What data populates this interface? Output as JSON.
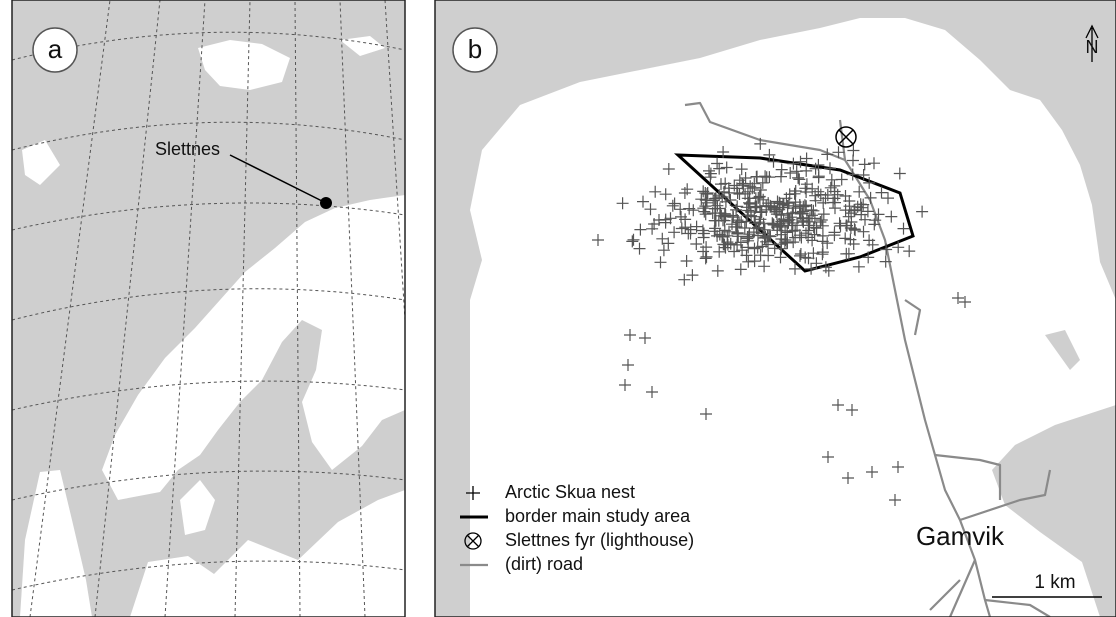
{
  "panels": [
    {
      "label": "a",
      "place_label": "Slettnes"
    },
    {
      "label": "b",
      "north": "N",
      "town": "Gamvik",
      "scale": "1 km",
      "legend": [
        "Arctic Skua nest",
        "border main study area",
        "Slettnes fyr (lighthouse)",
        "(dirt) road"
      ]
    }
  ]
}
